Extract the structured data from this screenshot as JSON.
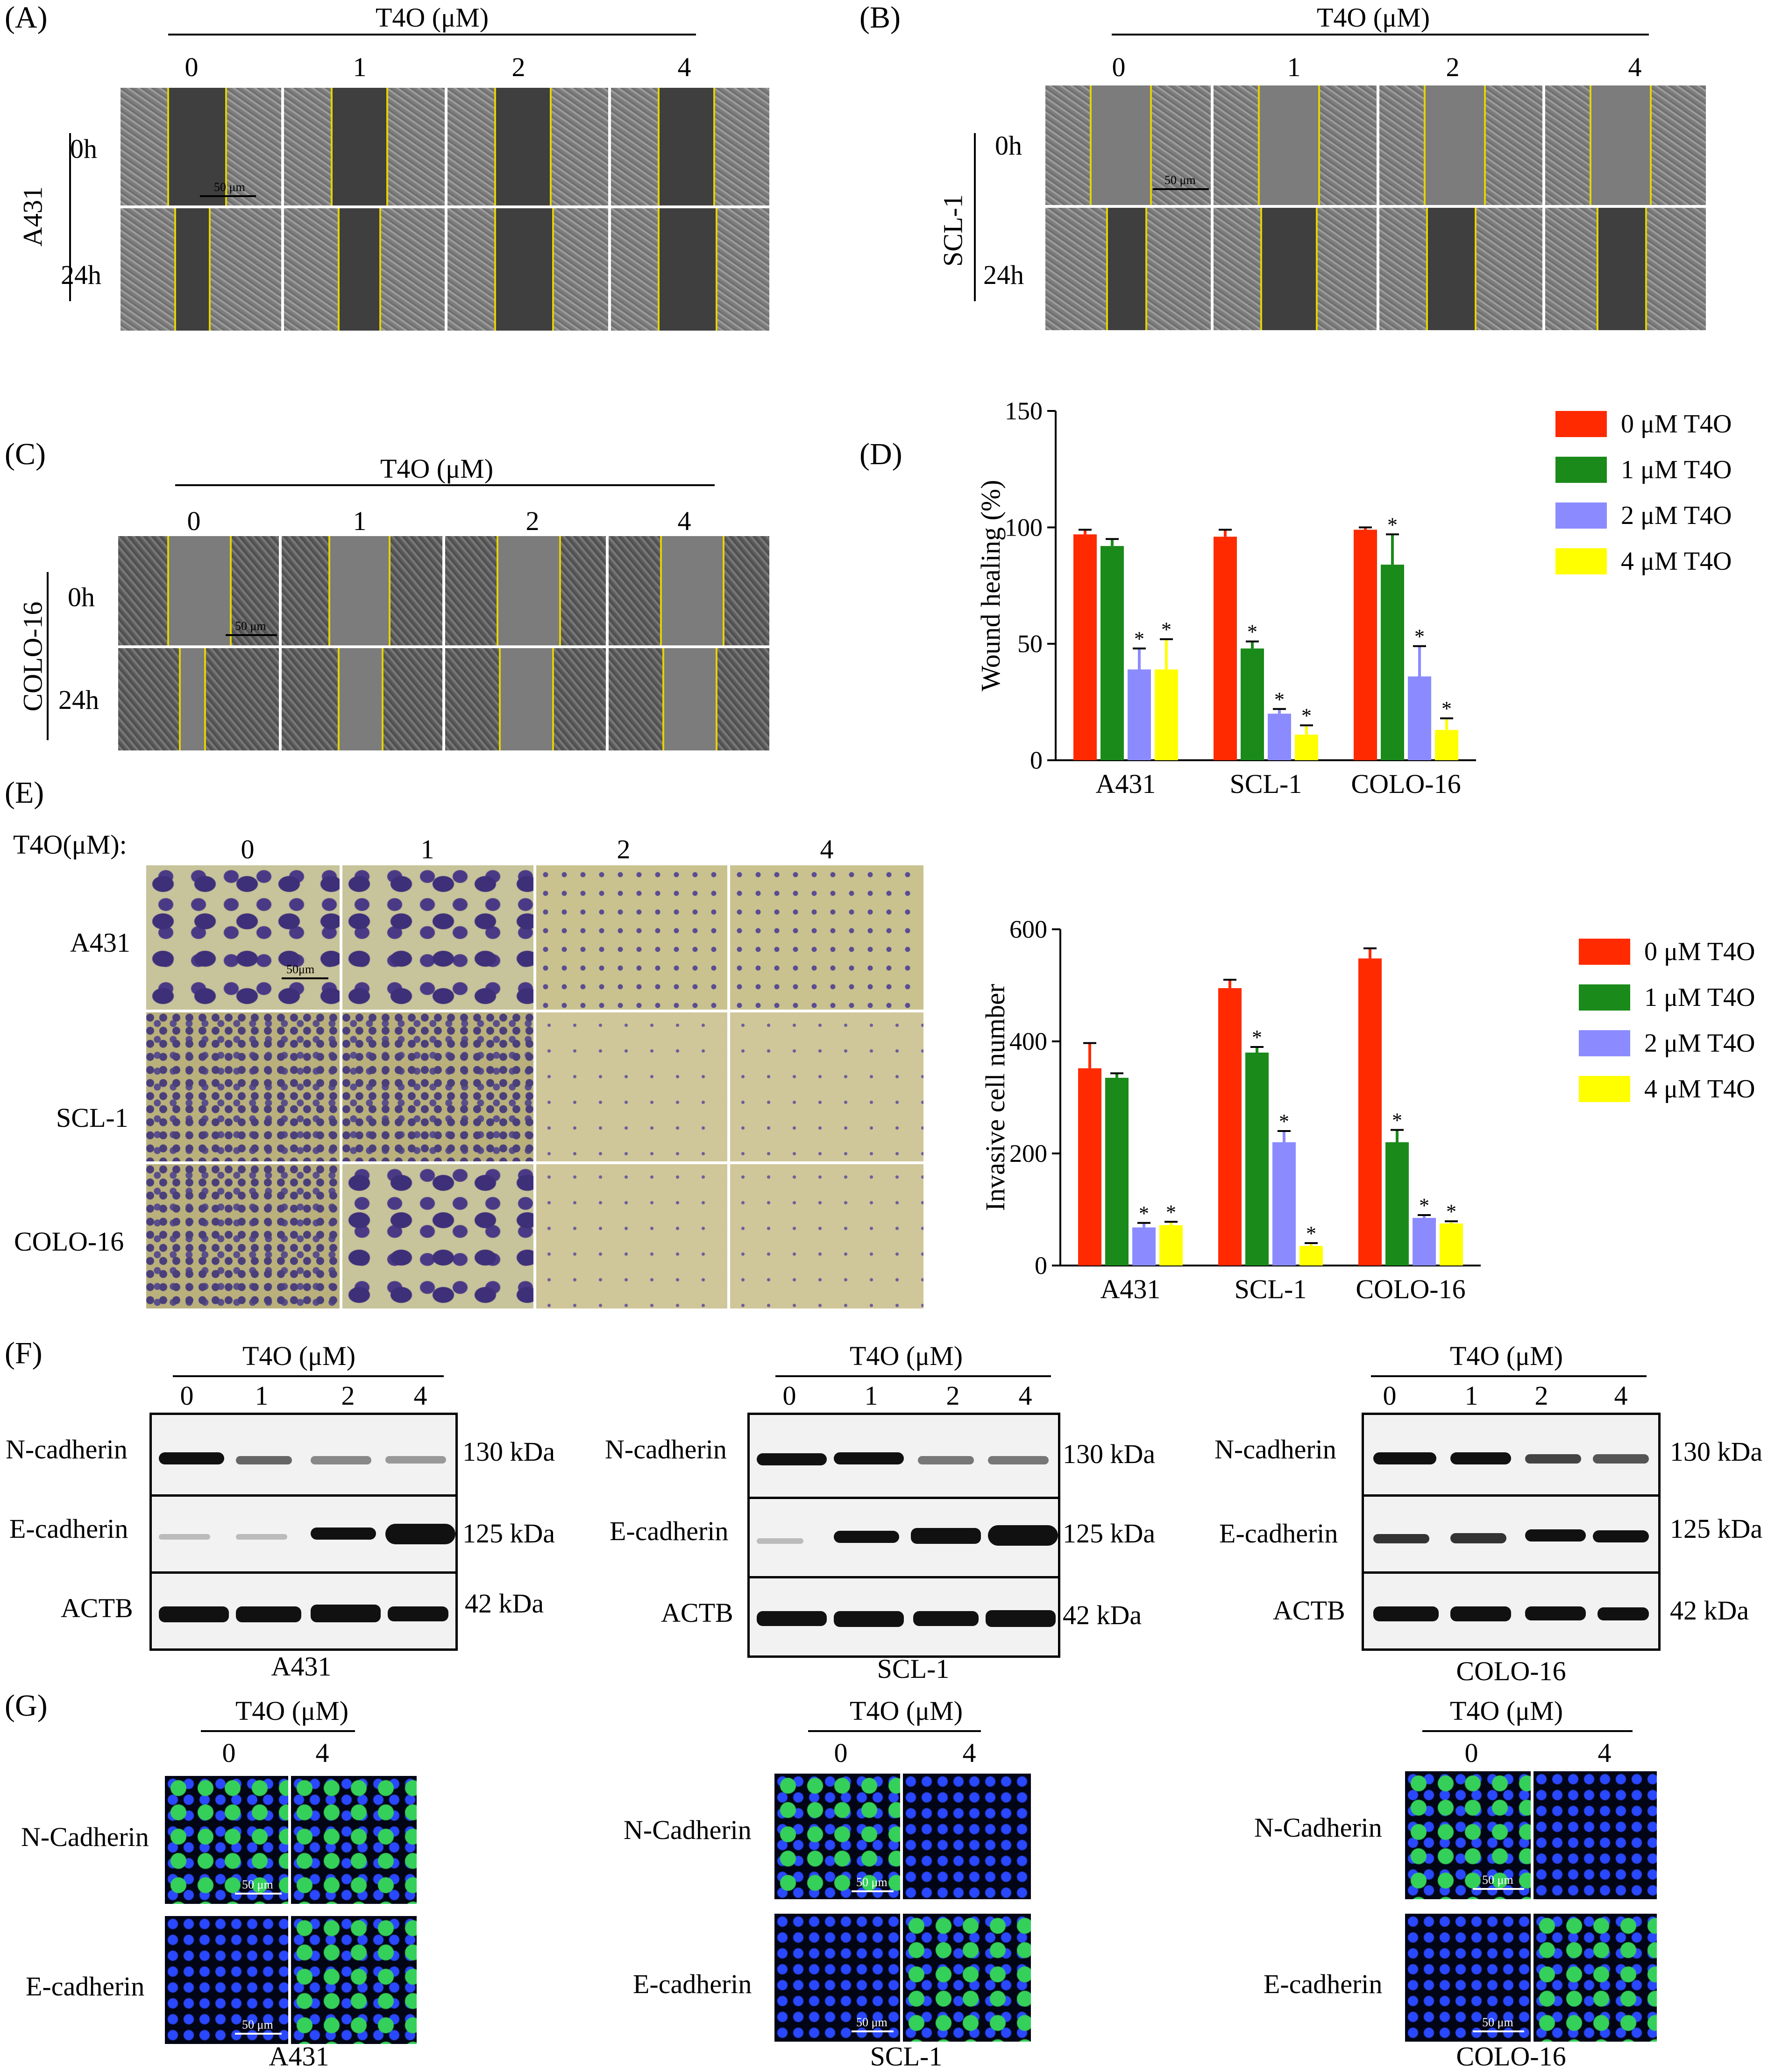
{
  "panel_labels": {
    "a": "(A)",
    "b": "(B)",
    "c": "(C)",
    "d": "(D)",
    "e": "(E)",
    "f": "(F)",
    "g": "(G)"
  },
  "treatment_header": "T4O (μM)",
  "treatment_header_e": "T4O(μM):",
  "doses": [
    "0",
    "1",
    "2",
    "4"
  ],
  "doses_fluor": [
    "0",
    "4"
  ],
  "time_labels": [
    "0h",
    "24h"
  ],
  "cell_lines": [
    "A431",
    "SCL-1",
    "COLO-16"
  ],
  "scale_bar": "50 μm",
  "scale_bar_e": "50μm",
  "blot_proteins": [
    "N-cadherin",
    "E-cadherin",
    "ACTB"
  ],
  "blot_sizes": [
    [
      "130 kDa",
      "125 kDa",
      "42 kDa"
    ],
    [
      "130 kDa",
      "125 kDa",
      "42 kDa"
    ],
    [
      "130 kDa",
      "125 kDa",
      "42 kDa"
    ]
  ],
  "fluor_proteins": [
    "N-Cadherin",
    "E-cadherin"
  ],
  "colors": {
    "s0": "#ff2a00",
    "s1": "#1a8a1a",
    "s2": "#8b8bff",
    "s3": "#ffff00"
  },
  "chart_data": [
    {
      "type": "bar",
      "categories": [
        "A431",
        "SCL-1",
        "COLO-16"
      ],
      "ylabel": "Wound healing (%)",
      "ylim": [
        0,
        150
      ],
      "yticks": [
        0,
        50,
        100,
        150
      ],
      "legend_position": "top-right",
      "series": [
        {
          "name": "0 μM  T4O",
          "values": [
            97,
            96,
            99
          ],
          "errors": [
            2,
            3,
            1
          ],
          "significant": [
            false,
            false,
            false
          ]
        },
        {
          "name": "1 μM  T4O",
          "values": [
            92,
            48,
            84
          ],
          "errors": [
            3,
            3,
            13
          ],
          "significant": [
            false,
            true,
            true
          ]
        },
        {
          "name": "2 μM  T4O",
          "values": [
            39,
            20,
            36
          ],
          "errors": [
            9,
            2,
            13
          ],
          "significant": [
            true,
            true,
            true
          ]
        },
        {
          "name": "4 μM  T4O",
          "values": [
            39,
            11,
            13
          ],
          "errors": [
            13,
            4,
            5
          ],
          "significant": [
            true,
            true,
            true
          ]
        }
      ]
    },
    {
      "type": "bar",
      "categories": [
        "A431",
        "SCL-1",
        "COLO-16"
      ],
      "ylabel": "Invasive cell number",
      "ylim": [
        0,
        600
      ],
      "yticks": [
        0,
        200,
        400,
        600
      ],
      "legend_position": "top-right",
      "series": [
        {
          "name": "0 μM T4O",
          "values": [
            352,
            495,
            548
          ],
          "errors": [
            45,
            15,
            18
          ],
          "significant": [
            false,
            false,
            false
          ]
        },
        {
          "name": "1 μM T4O",
          "values": [
            335,
            380,
            220
          ],
          "errors": [
            8,
            10,
            22
          ],
          "significant": [
            false,
            true,
            true
          ]
        },
        {
          "name": "2 μM T4O",
          "values": [
            68,
            220,
            85
          ],
          "errors": [
            8,
            20,
            5
          ],
          "significant": [
            true,
            true,
            true
          ]
        },
        {
          "name": "4 μM T4O",
          "values": [
            72,
            35,
            75
          ],
          "errors": [
            6,
            5,
            4
          ],
          "significant": [
            true,
            true,
            true
          ]
        }
      ]
    }
  ]
}
